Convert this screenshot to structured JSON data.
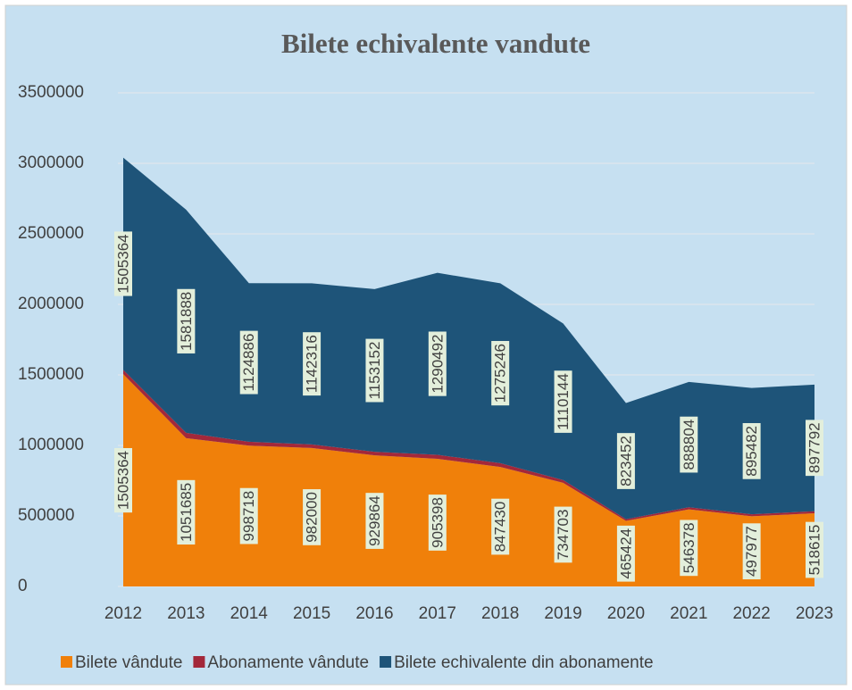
{
  "chart_data": {
    "type": "stacked_area",
    "title": "Bilete echivalente vandute",
    "categories": [
      "2012",
      "2013",
      "2014",
      "2015",
      "2016",
      "2017",
      "2018",
      "2019",
      "2020",
      "2021",
      "2022",
      "2023"
    ],
    "series": [
      {
        "name": "Bilete vândute",
        "color": "#f0800a",
        "values": [
          1505364,
          1051685,
          998718,
          982000,
          929864,
          905398,
          847430,
          734703,
          465424,
          546378,
          497977,
          518615
        ]
      },
      {
        "name": "Abonamente vândute",
        "color": "#a3283a",
        "values": [
          30000,
          38000,
          27000,
          25000,
          25000,
          28000,
          27000,
          20000,
          12000,
          15000,
          14000,
          15000
        ]
      },
      {
        "name": "Bilete echivalente din abonamente",
        "color": "#1e5479",
        "values": [
          1505364,
          1581888,
          1124886,
          1142316,
          1153152,
          1290492,
          1275246,
          1110144,
          823452,
          888804,
          895482,
          897792
        ]
      }
    ],
    "data_label_series": [
      0,
      2
    ],
    "ylim": [
      0,
      3500000
    ],
    "yticks": [
      0,
      500000,
      1000000,
      1500000,
      2000000,
      2500000,
      3000000,
      3500000
    ],
    "grid": true,
    "legend": "bottom"
  }
}
